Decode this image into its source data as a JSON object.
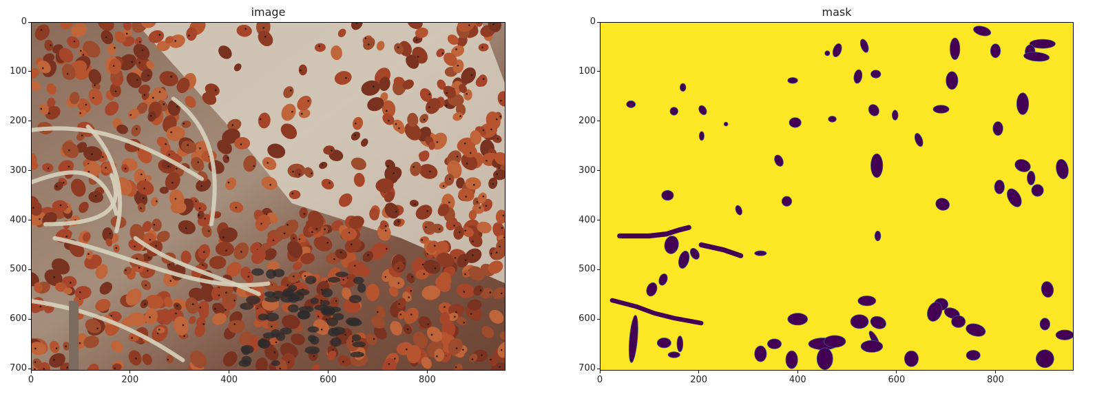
{
  "chart_data": [
    {
      "type": "image",
      "title": "image",
      "xlim": [
        0,
        958
      ],
      "ylim": [
        704,
        0
      ],
      "xticks": [
        0,
        200,
        400,
        600,
        800
      ],
      "yticks": [
        0,
        100,
        200,
        300,
        400,
        500,
        600,
        700
      ],
      "content": "photograph of a dense cluster of ladybugs on dry twigs and a pale log"
    },
    {
      "type": "heatmap",
      "title": "mask",
      "colormap": "viridis",
      "background_color": "#fde725",
      "blob_color": "#440154",
      "xlim": [
        0,
        958
      ],
      "ylim": [
        704,
        0
      ],
      "xticks": [
        0,
        200,
        400,
        600,
        800
      ],
      "yticks": [
        0,
        100,
        200,
        300,
        400,
        500,
        600,
        700
      ],
      "blobs": [
        {
          "cx": 63,
          "cy": 166,
          "rx": 9,
          "ry": 7,
          "rot": 0
        },
        {
          "cx": 168,
          "cy": 132,
          "rx": 6,
          "ry": 8,
          "rot": 0
        },
        {
          "cx": 150,
          "cy": 180,
          "rx": 8,
          "ry": 8,
          "rot": 0
        },
        {
          "cx": 208,
          "cy": 178,
          "rx": 7,
          "ry": 10,
          "rot": -30
        },
        {
          "cx": 255,
          "cy": 206,
          "rx": 4,
          "ry": 4,
          "rot": 0
        },
        {
          "cx": 206,
          "cy": 230,
          "rx": 5,
          "ry": 9,
          "rot": 0
        },
        {
          "cx": 137,
          "cy": 350,
          "rx": 12,
          "ry": 10,
          "rot": 0
        },
        {
          "cx": 281,
          "cy": 380,
          "rx": 6,
          "ry": 10,
          "rot": -20
        },
        {
          "cx": 145,
          "cy": 450,
          "rx": 14,
          "ry": 18,
          "rot": 10
        },
        {
          "cx": 170,
          "cy": 480,
          "rx": 10,
          "ry": 18,
          "rot": 15
        },
        {
          "cx": 192,
          "cy": 468,
          "rx": 8,
          "ry": 12,
          "rot": -30
        },
        {
          "cx": 325,
          "cy": 467,
          "rx": 12,
          "ry": 5,
          "rot": 0
        },
        {
          "cx": 128,
          "cy": 520,
          "rx": 8,
          "ry": 12,
          "rot": 20
        },
        {
          "cx": 105,
          "cy": 540,
          "rx": 10,
          "ry": 14,
          "rot": 20
        },
        {
          "cx": 130,
          "cy": 648,
          "rx": 14,
          "ry": 10,
          "rot": 0
        },
        {
          "cx": 150,
          "cy": 672,
          "rx": 12,
          "ry": 6,
          "rot": 0
        },
        {
          "cx": 162,
          "cy": 650,
          "rx": 6,
          "ry": 16,
          "rot": 0
        },
        {
          "cx": 68,
          "cy": 640,
          "rx": 8,
          "ry": 48,
          "rot": 5
        },
        {
          "cx": 362,
          "cy": 280,
          "rx": 8,
          "ry": 12,
          "rot": -25
        },
        {
          "cx": 378,
          "cy": 362,
          "rx": 10,
          "ry": 10,
          "rot": 0
        },
        {
          "cx": 390,
          "cy": 118,
          "rx": 10,
          "ry": 6,
          "rot": 0
        },
        {
          "cx": 395,
          "cy": 203,
          "rx": 12,
          "ry": 10,
          "rot": 0
        },
        {
          "cx": 470,
          "cy": 196,
          "rx": 8,
          "ry": 6,
          "rot": 0
        },
        {
          "cx": 460,
          "cy": 63,
          "rx": 5,
          "ry": 5,
          "rot": 0
        },
        {
          "cx": 480,
          "cy": 57,
          "rx": 8,
          "ry": 14,
          "rot": 20
        },
        {
          "cx": 535,
          "cy": 48,
          "rx": 7,
          "ry": 14,
          "rot": -20
        },
        {
          "cx": 522,
          "cy": 110,
          "rx": 8,
          "ry": 14,
          "rot": 10
        },
        {
          "cx": 558,
          "cy": 105,
          "rx": 10,
          "ry": 8,
          "rot": 0
        },
        {
          "cx": 554,
          "cy": 178,
          "rx": 10,
          "ry": 12,
          "rot": -30
        },
        {
          "cx": 597,
          "cy": 188,
          "rx": 6,
          "ry": 10,
          "rot": 0
        },
        {
          "cx": 560,
          "cy": 290,
          "rx": 12,
          "ry": 24,
          "rot": 0
        },
        {
          "cx": 562,
          "cy": 432,
          "rx": 6,
          "ry": 10,
          "rot": 0
        },
        {
          "cx": 645,
          "cy": 238,
          "rx": 7,
          "ry": 14,
          "rot": -20
        },
        {
          "cx": 690,
          "cy": 176,
          "rx": 16,
          "ry": 8,
          "rot": 0
        },
        {
          "cx": 712,
          "cy": 118,
          "rx": 12,
          "ry": 18,
          "rot": 0
        },
        {
          "cx": 718,
          "cy": 54,
          "rx": 10,
          "ry": 22,
          "rot": 0
        },
        {
          "cx": 773,
          "cy": 18,
          "rx": 18,
          "ry": 9,
          "rot": 15
        },
        {
          "cx": 800,
          "cy": 58,
          "rx": 10,
          "ry": 14,
          "rot": 0
        },
        {
          "cx": 895,
          "cy": 44,
          "rx": 26,
          "ry": 9,
          "rot": 0
        },
        {
          "cx": 870,
          "cy": 60,
          "rx": 10,
          "ry": 14,
          "rot": 0
        },
        {
          "cx": 883,
          "cy": 70,
          "rx": 26,
          "ry": 9,
          "rot": 5
        },
        {
          "cx": 855,
          "cy": 165,
          "rx": 12,
          "ry": 22,
          "rot": 0
        },
        {
          "cx": 805,
          "cy": 215,
          "rx": 10,
          "ry": 14,
          "rot": 0
        },
        {
          "cx": 855,
          "cy": 290,
          "rx": 16,
          "ry": 12,
          "rot": 20
        },
        {
          "cx": 808,
          "cy": 333,
          "rx": 10,
          "ry": 14,
          "rot": 0
        },
        {
          "cx": 838,
          "cy": 355,
          "rx": 12,
          "ry": 20,
          "rot": -30
        },
        {
          "cx": 872,
          "cy": 315,
          "rx": 8,
          "ry": 14,
          "rot": 0
        },
        {
          "cx": 885,
          "cy": 340,
          "rx": 12,
          "ry": 12,
          "rot": 0
        },
        {
          "cx": 935,
          "cy": 297,
          "rx": 12,
          "ry": 20,
          "rot": -10
        },
        {
          "cx": 693,
          "cy": 368,
          "rx": 14,
          "ry": 12,
          "rot": 20
        },
        {
          "cx": 905,
          "cy": 540,
          "rx": 12,
          "ry": 16,
          "rot": -10
        },
        {
          "cx": 900,
          "cy": 610,
          "rx": 10,
          "ry": 12,
          "rot": 0
        },
        {
          "cx": 940,
          "cy": 632,
          "rx": 18,
          "ry": 10,
          "rot": 0
        },
        {
          "cx": 900,
          "cy": 680,
          "rx": 18,
          "ry": 18,
          "rot": 20
        },
        {
          "cx": 540,
          "cy": 563,
          "rx": 18,
          "ry": 10,
          "rot": 0
        },
        {
          "cx": 525,
          "cy": 605,
          "rx": 18,
          "ry": 14,
          "rot": 0
        },
        {
          "cx": 563,
          "cy": 607,
          "rx": 16,
          "ry": 12,
          "rot": 20
        },
        {
          "cx": 555,
          "cy": 640,
          "rx": 6,
          "ry": 18,
          "rot": -30
        },
        {
          "cx": 550,
          "cy": 655,
          "rx": 22,
          "ry": 12,
          "rot": 0
        },
        {
          "cx": 400,
          "cy": 600,
          "rx": 20,
          "ry": 12,
          "rot": 0
        },
        {
          "cx": 388,
          "cy": 682,
          "rx": 12,
          "ry": 18,
          "rot": 0
        },
        {
          "cx": 325,
          "cy": 670,
          "rx": 12,
          "ry": 16,
          "rot": 0
        },
        {
          "cx": 353,
          "cy": 650,
          "rx": 14,
          "ry": 10,
          "rot": 0
        },
        {
          "cx": 452,
          "cy": 650,
          "rx": 30,
          "ry": 12,
          "rot": 0
        },
        {
          "cx": 475,
          "cy": 645,
          "rx": 22,
          "ry": 12,
          "rot": 0
        },
        {
          "cx": 455,
          "cy": 680,
          "rx": 16,
          "ry": 22,
          "rot": 0
        },
        {
          "cx": 690,
          "cy": 570,
          "rx": 14,
          "ry": 12,
          "rot": 0
        },
        {
          "cx": 677,
          "cy": 585,
          "rx": 14,
          "ry": 20,
          "rot": 20
        },
        {
          "cx": 712,
          "cy": 588,
          "rx": 16,
          "ry": 10,
          "rot": 20
        },
        {
          "cx": 725,
          "cy": 605,
          "rx": 14,
          "ry": 12,
          "rot": 0
        },
        {
          "cx": 760,
          "cy": 622,
          "rx": 20,
          "ry": 12,
          "rot": 15
        },
        {
          "cx": 630,
          "cy": 680,
          "rx": 14,
          "ry": 16,
          "rot": 0
        },
        {
          "cx": 755,
          "cy": 673,
          "rx": 14,
          "ry": 10,
          "rot": 0
        }
      ],
      "strokes": [
        {
          "points": [
            [
              40,
              432
            ],
            [
              100,
              432
            ],
            [
              135,
              428
            ],
            [
              160,
              420
            ],
            [
              180,
              415
            ]
          ],
          "width": 10
        },
        {
          "points": [
            [
              205,
              450
            ],
            [
              250,
              460
            ],
            [
              285,
              472
            ]
          ],
          "width": 10
        },
        {
          "points": [
            [
              25,
              562
            ],
            [
              75,
              575
            ],
            [
              110,
              588
            ],
            [
              150,
              598
            ],
            [
              205,
              608
            ]
          ],
          "width": 9
        }
      ]
    }
  ]
}
